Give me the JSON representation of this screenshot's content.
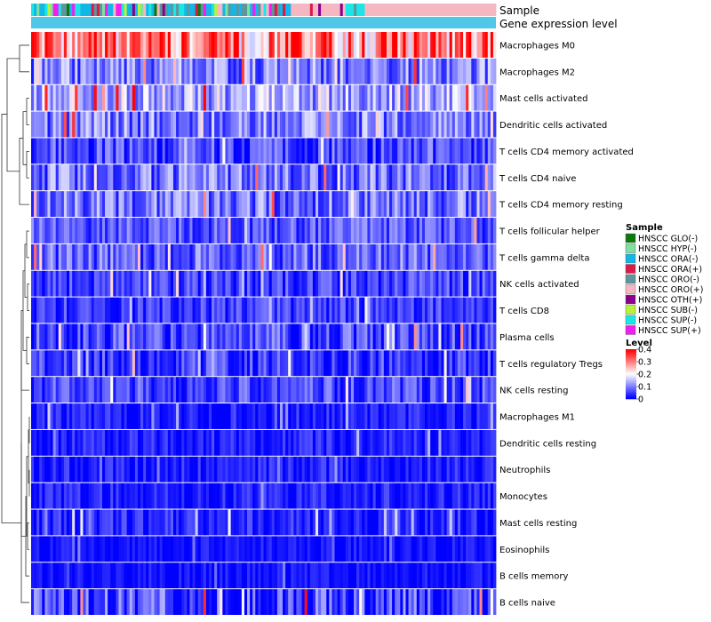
{
  "chart_data": {
    "type": "heatmap",
    "title": "",
    "xlabel": "",
    "ylabel": "",
    "annotation_tracks": [
      "Sample",
      "Gene expression level"
    ],
    "rows": [
      {
        "label": "Macrophages M0",
        "mean": 0.28,
        "spread": 0.14
      },
      {
        "label": "Macrophages M2",
        "mean": 0.09,
        "spread": 0.08
      },
      {
        "label": "Mast cells activated",
        "mean": 0.13,
        "spread": 0.09
      },
      {
        "label": "Dendritic cells activated",
        "mean": 0.09,
        "spread": 0.08
      },
      {
        "label": "T cells CD4 memory activated",
        "mean": 0.05,
        "spread": 0.07
      },
      {
        "label": "T cells CD4 naive",
        "mean": 0.08,
        "spread": 0.08
      },
      {
        "label": "T cells CD4 memory resting",
        "mean": 0.08,
        "spread": 0.08
      },
      {
        "label": "T cells follicular helper",
        "mean": 0.06,
        "spread": 0.06
      },
      {
        "label": "T cells gamma delta",
        "mean": 0.07,
        "spread": 0.07
      },
      {
        "label": "NK cells activated",
        "mean": 0.04,
        "spread": 0.06
      },
      {
        "label": "T cells CD8",
        "mean": 0.04,
        "spread": 0.05
      },
      {
        "label": "Plasma cells",
        "mean": 0.05,
        "spread": 0.07
      },
      {
        "label": "T cells regulatory  Tregs",
        "mean": 0.04,
        "spread": 0.06
      },
      {
        "label": "NK cells resting",
        "mean": 0.05,
        "spread": 0.06
      },
      {
        "label": "Macrophages M1",
        "mean": 0.02,
        "spread": 0.04
      },
      {
        "label": "Dendritic cells resting",
        "mean": 0.02,
        "spread": 0.04
      },
      {
        "label": "Neutrophils",
        "mean": 0.02,
        "spread": 0.04
      },
      {
        "label": "Monocytes",
        "mean": 0.02,
        "spread": 0.04
      },
      {
        "label": "Mast cells resting",
        "mean": 0.02,
        "spread": 0.05
      },
      {
        "label": "Eosinophils",
        "mean": 0.01,
        "spread": 0.03
      },
      {
        "label": "B cells memory",
        "mean": 0.01,
        "spread": 0.03
      },
      {
        "label": "B cells naive",
        "mean": 0.03,
        "spread": 0.1
      }
    ],
    "n_samples": 170,
    "sample_groups_by_segment": [
      {
        "samples": 95,
        "group": "mixed"
      },
      {
        "samples": 20,
        "group": "HNSCC ORO(+)"
      },
      {
        "samples": 7,
        "group": "HNSCC SUP(-)"
      },
      {
        "samples": 48,
        "group": "HNSCC ORO(+)"
      }
    ],
    "value_range": [
      0,
      0.4
    ],
    "colorscale": [
      "#0000ff",
      "#ffffff",
      "#ff0000"
    ],
    "legend": {
      "placement": "right",
      "sample": {
        "title": "Sample",
        "entries": [
          {
            "label": "HNSCC GLO(-)",
            "color": "#0b7a0b"
          },
          {
            "label": "HNSCC HYP(-)",
            "color": "#7fe0a0"
          },
          {
            "label": "HNSCC ORA(-)",
            "color": "#12b7e8"
          },
          {
            "label": "HNSCC ORA(+)",
            "color": "#d81b4a"
          },
          {
            "label": "HNSCC ORO(-)",
            "color": "#5f969e"
          },
          {
            "label": "HNSCC ORO(+)",
            "color": "#f5b8c3"
          },
          {
            "label": "HNSCC OTH(+)",
            "color": "#8b008b"
          },
          {
            "label": "HNSCC SUB(-)",
            "color": "#b8f23a"
          },
          {
            "label": "HNSCC SUP(-)",
            "color": "#19e6e6"
          },
          {
            "label": "HNSCC SUP(+)",
            "color": "#f01ef0"
          }
        ]
      },
      "level": {
        "title": "Level",
        "ticks": [
          "0.4",
          "0.3",
          "0.2",
          "0.1",
          "0"
        ],
        "tick_values": [
          0.4,
          0.3,
          0.2,
          0.1,
          0
        ]
      }
    },
    "gene_expression_level_color": "#4fc7e8"
  }
}
